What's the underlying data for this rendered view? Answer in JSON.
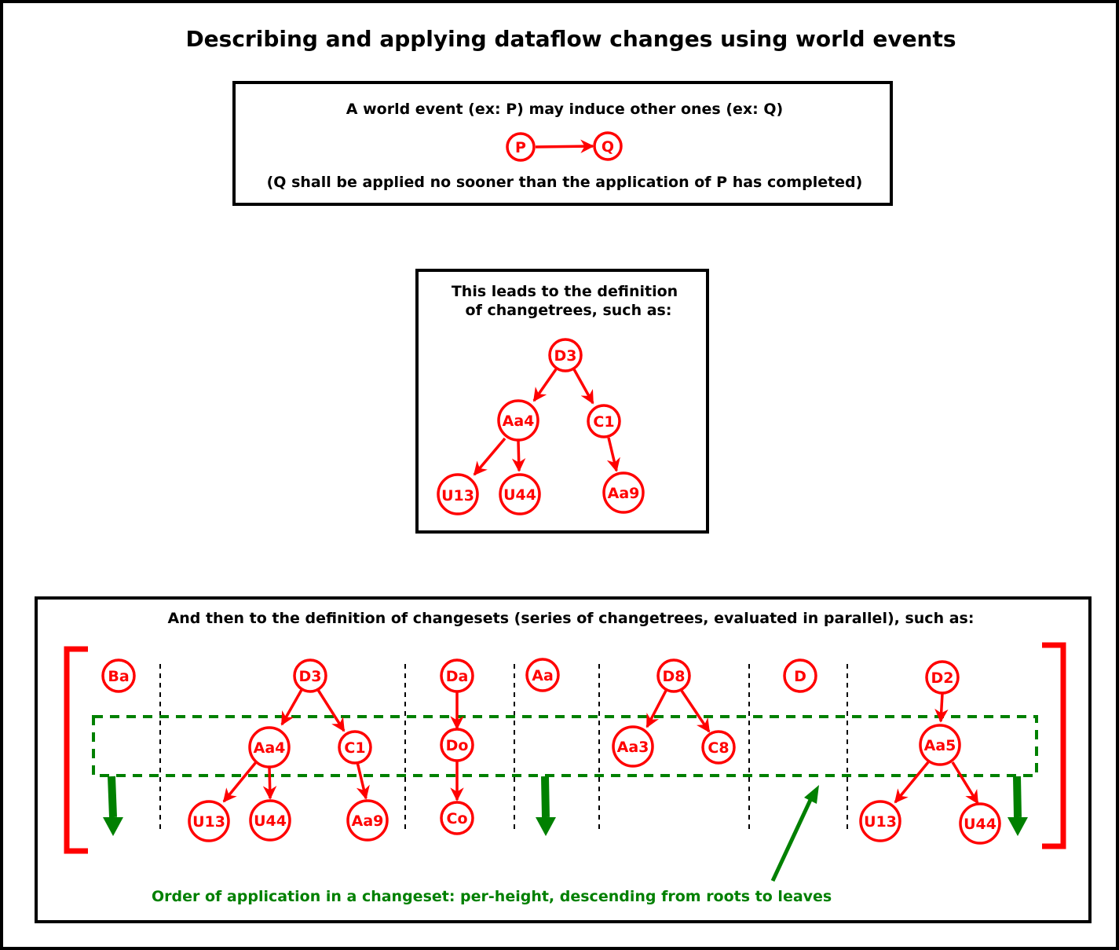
{
  "title": "Describing and applying dataflow changes using world events",
  "colors": {
    "event": "#ff0000",
    "order": "#008000",
    "frame": "#000000",
    "background": "#ffffff"
  },
  "box1": {
    "caption": "A world event (ex: P) may induce other ones (ex: Q)",
    "note": "(Q shall be applied no sooner than the application of P has completed)",
    "nodes": [
      "P",
      "Q"
    ]
  },
  "box2": {
    "caption_line1": "This leads to the definition",
    "caption_line2": "of changetrees, such as:",
    "nodes": [
      "D3",
      "Aa4",
      "C1",
      "U13",
      "U44",
      "Aa9"
    ]
  },
  "box3": {
    "caption": "And then to the definition of changesets (series of changetrees, evaluated in parallel), such as:",
    "order_note": "Order of application in a changeset: per-height, descending from roots to leaves",
    "changetrees": [
      [
        "Ba"
      ],
      [
        "D3",
        "Aa4",
        "C1",
        "U13",
        "U44",
        "Aa9"
      ],
      [
        "Da",
        "Do",
        "Co"
      ],
      [
        "Aa"
      ],
      [
        "D8",
        "Aa3",
        "C8"
      ],
      [
        "D"
      ],
      [
        "D2",
        "Aa5",
        "U13",
        "U44"
      ]
    ]
  }
}
